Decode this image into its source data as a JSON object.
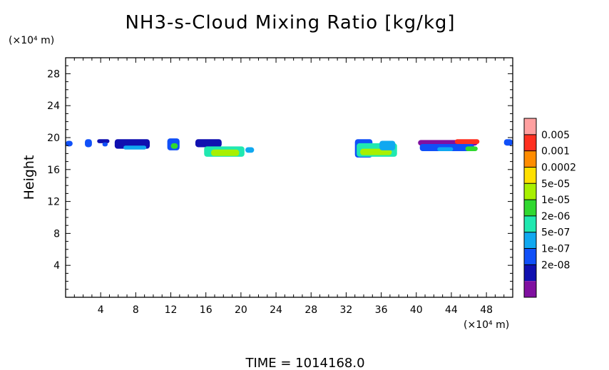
{
  "chart_data": {
    "type": "heatmap",
    "title": "NH3-s-Cloud Mixing Ratio [kg/kg]",
    "ylabel": "Height",
    "y_unit": "(×10⁴ m)",
    "x_unit": "(×10⁴ m)",
    "xlim": [
      0,
      51
    ],
    "ylim": [
      0,
      30
    ],
    "x_ticks": [
      4,
      8,
      12,
      16,
      20,
      24,
      28,
      32,
      36,
      40,
      44,
      48
    ],
    "y_ticks": [
      4,
      8,
      12,
      16,
      20,
      24,
      28
    ],
    "colorbar": {
      "labels": [
        "0.005",
        "0.001",
        "0.0002",
        "5e-05",
        "1e-05",
        "2e-06",
        "5e-07",
        "1e-07",
        "2e-08"
      ],
      "colors": [
        "#ffa0a0",
        "#ff3020",
        "#ff8c00",
        "#ffe000",
        "#a8f000",
        "#30d830",
        "#20e8b0",
        "#10a8f0",
        "#1050f8",
        "#1010b0",
        "#8010a0"
      ]
    },
    "cloud_blobs": [
      {
        "x0": 0.0,
        "x1": 0.8,
        "y0": 18.9,
        "y1": 19.6,
        "level": 8
      },
      {
        "x0": 2.2,
        "x1": 3.0,
        "y0": 18.8,
        "y1": 19.8,
        "level": 8
      },
      {
        "x0": 3.6,
        "x1": 5.0,
        "y0": 19.3,
        "y1": 19.8,
        "level": 9
      },
      {
        "x0": 4.2,
        "x1": 4.8,
        "y0": 18.9,
        "y1": 19.4,
        "level": 8
      },
      {
        "x0": 5.6,
        "x1": 9.6,
        "y0": 18.6,
        "y1": 19.8,
        "level": 9
      },
      {
        "x0": 6.6,
        "x1": 9.2,
        "y0": 18.5,
        "y1": 19.0,
        "level": 7
      },
      {
        "x0": 11.6,
        "x1": 13.0,
        "y0": 18.4,
        "y1": 19.9,
        "level": 8
      },
      {
        "x0": 12.0,
        "x1": 12.8,
        "y0": 18.6,
        "y1": 19.3,
        "level": 5
      },
      {
        "x0": 14.8,
        "x1": 17.8,
        "y0": 18.8,
        "y1": 19.8,
        "level": 9
      },
      {
        "x0": 15.8,
        "x1": 20.4,
        "y0": 17.6,
        "y1": 18.9,
        "level": 6
      },
      {
        "x0": 16.6,
        "x1": 19.8,
        "y0": 17.7,
        "y1": 18.5,
        "level": 4
      },
      {
        "x0": 20.5,
        "x1": 21.5,
        "y0": 18.1,
        "y1": 18.8,
        "level": 7
      },
      {
        "x0": 33.0,
        "x1": 35.0,
        "y0": 17.5,
        "y1": 19.8,
        "level": 8
      },
      {
        "x0": 33.2,
        "x1": 37.8,
        "y0": 17.6,
        "y1": 19.3,
        "level": 6
      },
      {
        "x0": 33.6,
        "x1": 37.2,
        "y0": 17.8,
        "y1": 18.6,
        "level": 4
      },
      {
        "x0": 35.8,
        "x1": 37.6,
        "y0": 18.4,
        "y1": 19.6,
        "level": 7
      },
      {
        "x0": 40.2,
        "x1": 47.0,
        "y0": 19.0,
        "y1": 19.7,
        "level": 10
      },
      {
        "x0": 40.4,
        "x1": 46.6,
        "y0": 18.3,
        "y1": 19.2,
        "level": 8
      },
      {
        "x0": 42.4,
        "x1": 44.2,
        "y0": 18.3,
        "y1": 18.8,
        "level": 7
      },
      {
        "x0": 44.4,
        "x1": 47.2,
        "y0": 19.2,
        "y1": 19.8,
        "level": 1
      },
      {
        "x0": 45.6,
        "x1": 47.0,
        "y0": 18.3,
        "y1": 18.9,
        "level": 5
      },
      {
        "x0": 50.0,
        "x1": 51.0,
        "y0": 19.0,
        "y1": 19.8,
        "level": 8
      }
    ]
  },
  "footer": {
    "time_label": "TIME = 1014168.0"
  }
}
